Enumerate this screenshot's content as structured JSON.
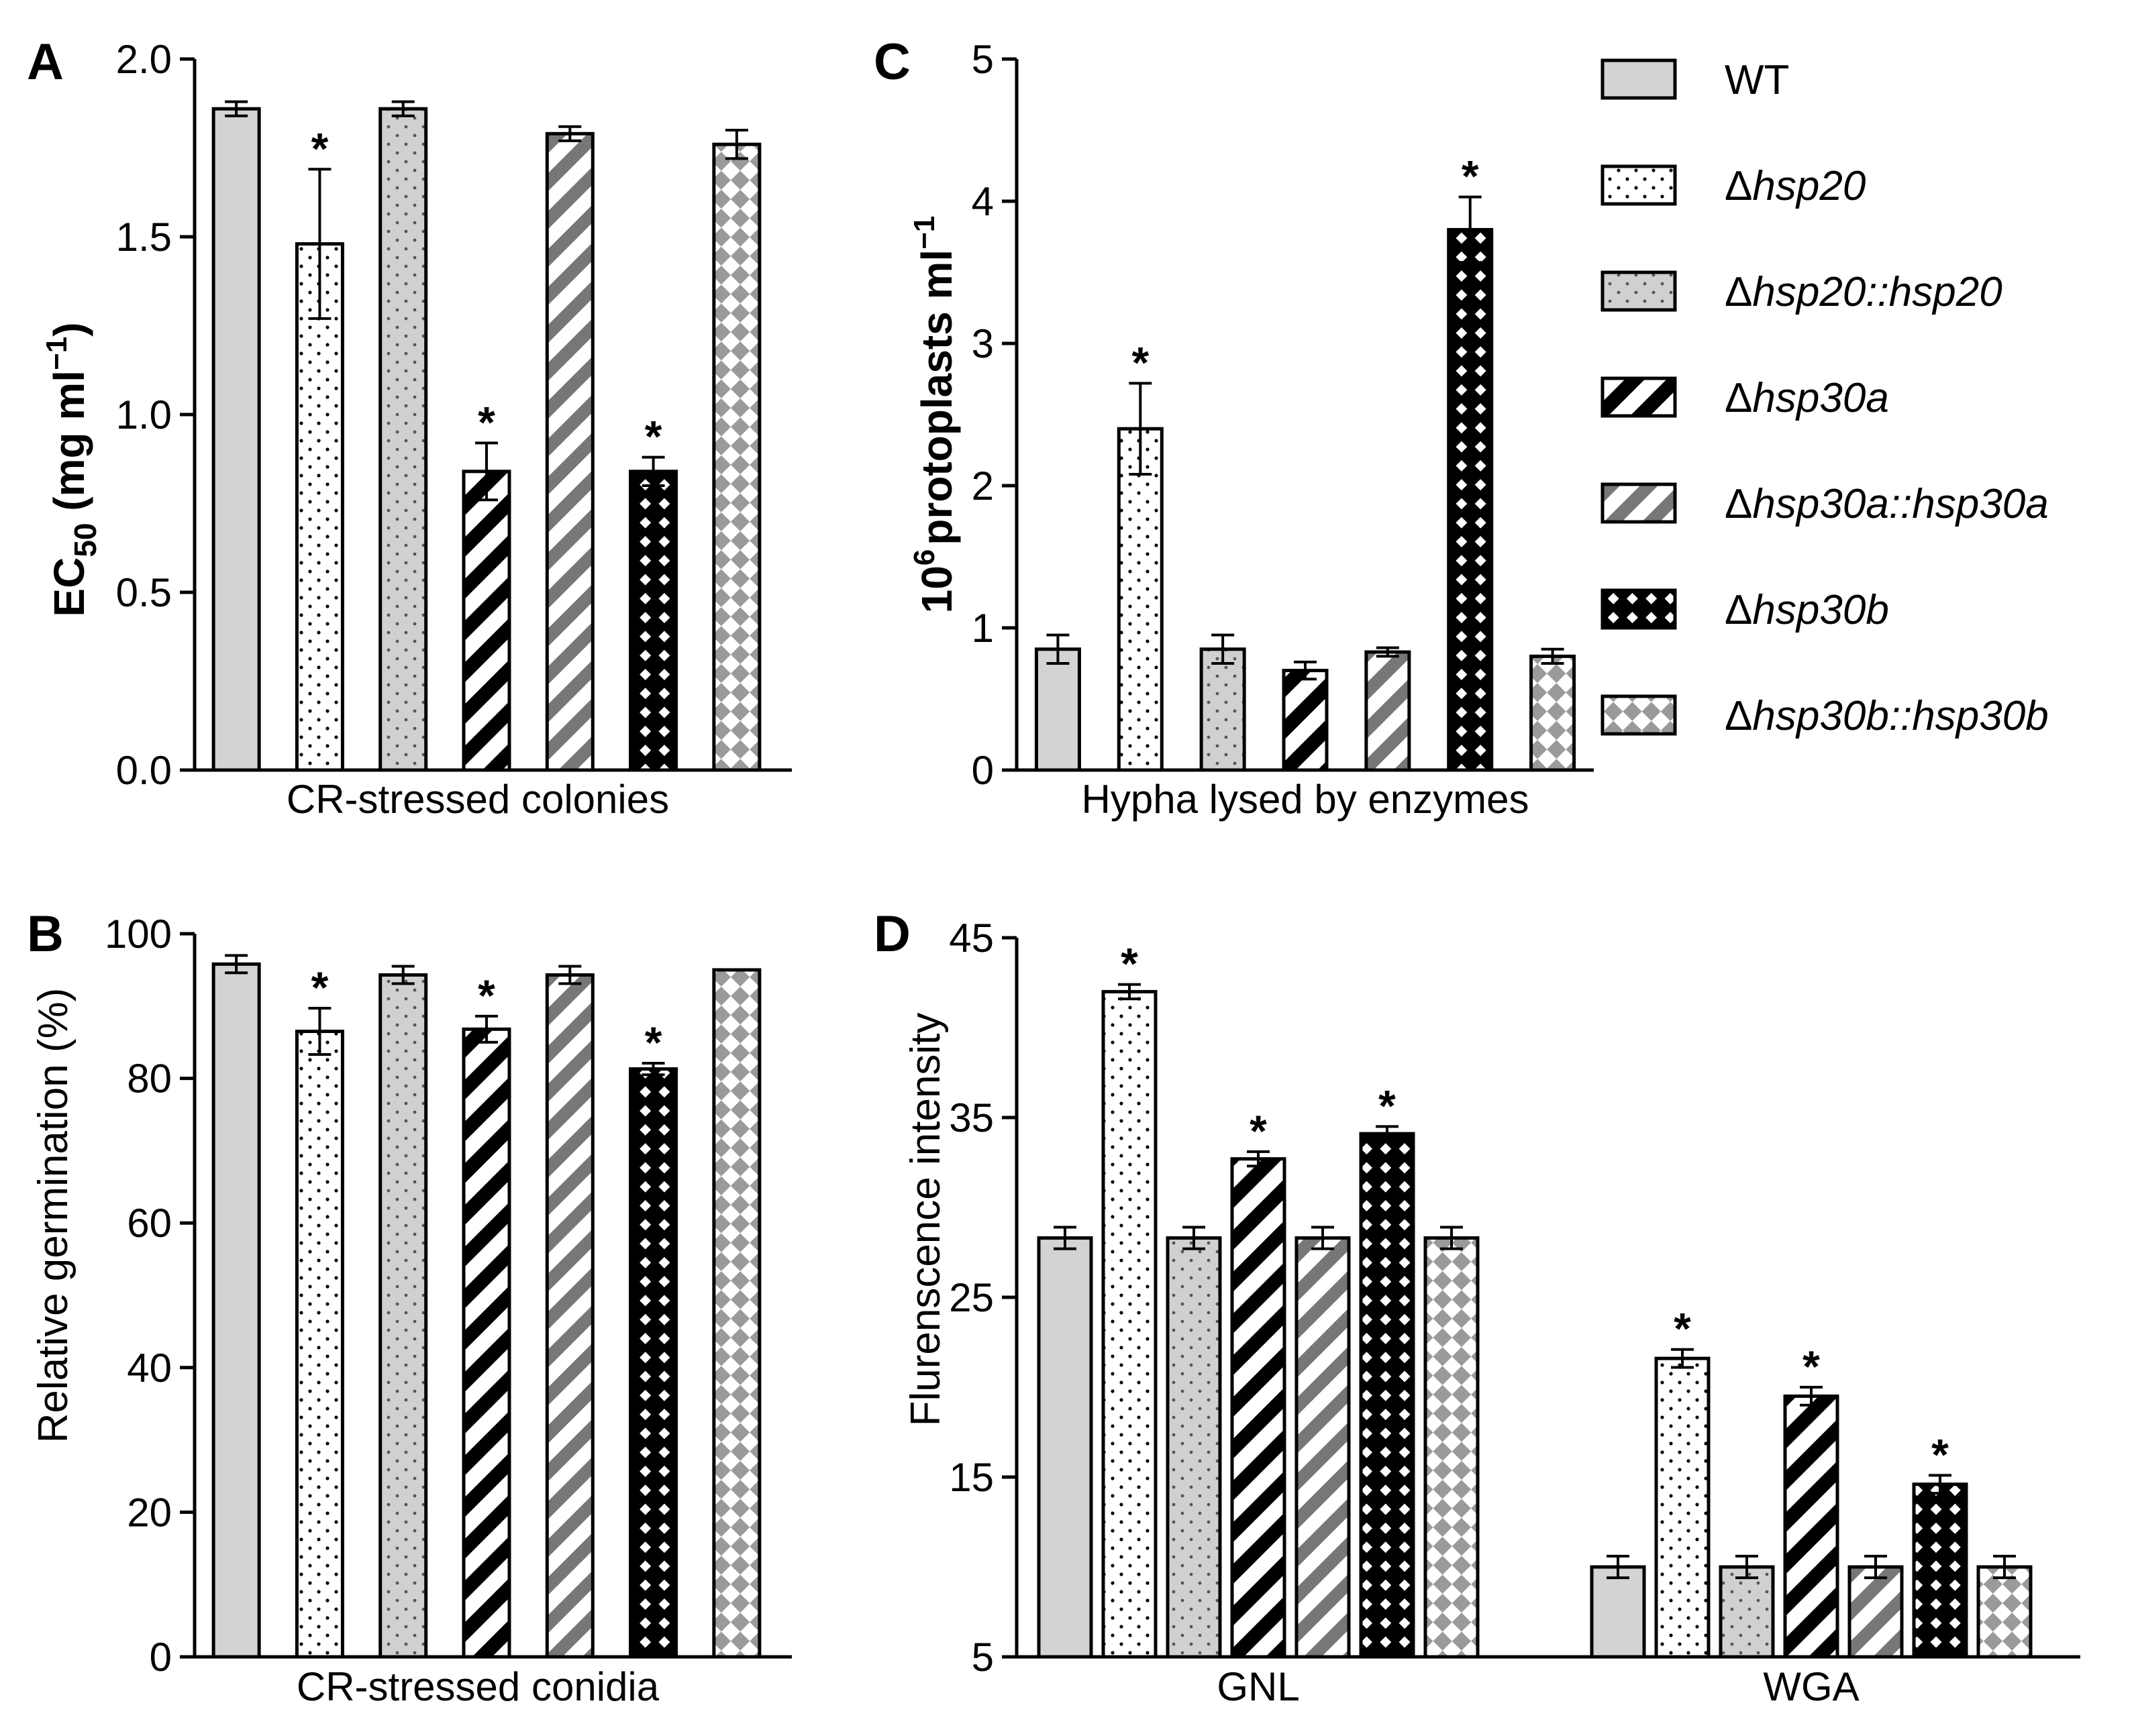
{
  "legend": {
    "entries": [
      {
        "key": "wt",
        "prefix": "",
        "label": "WT"
      },
      {
        "key": "hsp20",
        "prefix": "Δ",
        "label": "hsp20"
      },
      {
        "key": "hsp20c",
        "prefix": "Δ",
        "label": "hsp20::hsp20"
      },
      {
        "key": "hsp30a",
        "prefix": "Δ",
        "label": "hsp30a"
      },
      {
        "key": "hsp30ac",
        "prefix": "Δ",
        "label": "hsp30a::hsp30a"
      },
      {
        "key": "hsp30b",
        "prefix": "Δ",
        "label": "hsp30b"
      },
      {
        "key": "hsp30bc",
        "prefix": "Δ",
        "label": "hsp30b::hsp30b"
      }
    ]
  },
  "colors": {
    "wt_fill": "#d3d3d3",
    "bar_stroke": "#000000",
    "pattern_dark": "#000000",
    "pattern_grey": "#777777"
  },
  "chart_data": [
    {
      "panel": "A",
      "type": "bar",
      "ylabel": "EC50 (mg ml−1)",
      "ylabel_parts": {
        "main": "EC",
        "sub": "50",
        "unit_open": " (mg ml",
        "sup": "−1",
        "unit_close": ")"
      },
      "xlabel": "CR-stressed colonies",
      "ylim": [
        0,
        2.0
      ],
      "yticks": [
        "0.0",
        "0.5",
        "1.0",
        "1.5",
        "2.0"
      ],
      "categories": [
        "WT",
        "Δhsp20",
        "Δhsp20::hsp20",
        "Δhsp30a",
        "Δhsp30a::hsp30a",
        "Δhsp30b",
        "Δhsp30b::hsp30b"
      ],
      "values": [
        1.86,
        1.48,
        1.86,
        0.84,
        1.79,
        0.84,
        1.76
      ],
      "errors": [
        0.02,
        0.21,
        0.02,
        0.08,
        0.02,
        0.04,
        0.04
      ],
      "significant": [
        false,
        true,
        false,
        true,
        false,
        true,
        false
      ],
      "star": "*"
    },
    {
      "panel": "B",
      "type": "bar",
      "ylabel": "Relative germination (%)",
      "xlabel": "CR-stressed conidia",
      "ylim": [
        0,
        100
      ],
      "yticks": [
        "0",
        "20",
        "40",
        "60",
        "80",
        "100"
      ],
      "categories": [
        "WT",
        "Δhsp20",
        "Δhsp20::hsp20",
        "Δhsp30a",
        "Δhsp30a::hsp30a",
        "Δhsp30b",
        "Δhsp30b::hsp30b"
      ],
      "values": [
        95.8,
        86.5,
        94.3,
        86.8,
        94.3,
        81.3,
        95.0
      ],
      "errors": [
        1.2,
        3.2,
        1.2,
        1.8,
        1.2,
        0.8,
        0
      ],
      "significant": [
        false,
        true,
        false,
        true,
        false,
        true,
        false
      ],
      "star": "*"
    },
    {
      "panel": "C",
      "type": "bar",
      "ylabel": "106 protoplasts ml−1",
      "ylabel_parts": {
        "pre": "10",
        "pre_sup": "6",
        "main": "protoplasts ml",
        "sup": "−1"
      },
      "xlabel": "Hypha lysed by enzymes",
      "ylim": [
        0,
        5
      ],
      "yticks": [
        "0",
        "1",
        "2",
        "3",
        "4",
        "5"
      ],
      "categories": [
        "WT",
        "Δhsp20",
        "Δhsp20::hsp20",
        "Δhsp30a",
        "Δhsp30a::hsp30a",
        "Δhsp30b",
        "Δhsp30b::hsp30b"
      ],
      "values": [
        0.85,
        2.4,
        0.85,
        0.7,
        0.83,
        3.8,
        0.8
      ],
      "errors": [
        0.1,
        0.32,
        0.1,
        0.06,
        0.03,
        0.23,
        0.05
      ],
      "significant": [
        false,
        true,
        false,
        false,
        false,
        true,
        false
      ],
      "star": "*"
    },
    {
      "panel": "D",
      "type": "bar",
      "ylabel": "Flurenscence intensity",
      "ylim": [
        5,
        45
      ],
      "yticks": [
        "5",
        "15",
        "25",
        "35",
        "45"
      ],
      "groups": [
        "GNL",
        "WGA"
      ],
      "series": [
        {
          "name": "WT",
          "values": [
            28.3,
            10.0
          ],
          "errors": [
            0.6,
            0.6
          ],
          "significant": [
            false,
            false
          ]
        },
        {
          "name": "Δhsp20",
          "values": [
            42.0,
            21.6
          ],
          "errors": [
            0.4,
            0.5
          ],
          "significant": [
            true,
            true
          ]
        },
        {
          "name": "Δhsp20::hsp20",
          "values": [
            28.3,
            10.0
          ],
          "errors": [
            0.6,
            0.6
          ],
          "significant": [
            false,
            false
          ]
        },
        {
          "name": "Δhsp30a",
          "values": [
            32.7,
            19.5
          ],
          "errors": [
            0.4,
            0.5
          ],
          "significant": [
            true,
            true
          ]
        },
        {
          "name": "Δhsp30a::hsp30a",
          "values": [
            28.3,
            10.0
          ],
          "errors": [
            0.6,
            0.6
          ],
          "significant": [
            false,
            false
          ]
        },
        {
          "name": "Δhsp30b",
          "values": [
            34.1,
            14.6
          ],
          "errors": [
            0.4,
            0.5
          ],
          "significant": [
            true,
            true
          ]
        },
        {
          "name": "Δhsp30b::hsp30b",
          "values": [
            28.3,
            10.0
          ],
          "errors": [
            0.6,
            0.6
          ],
          "significant": [
            false,
            false
          ]
        }
      ],
      "star": "*"
    }
  ]
}
